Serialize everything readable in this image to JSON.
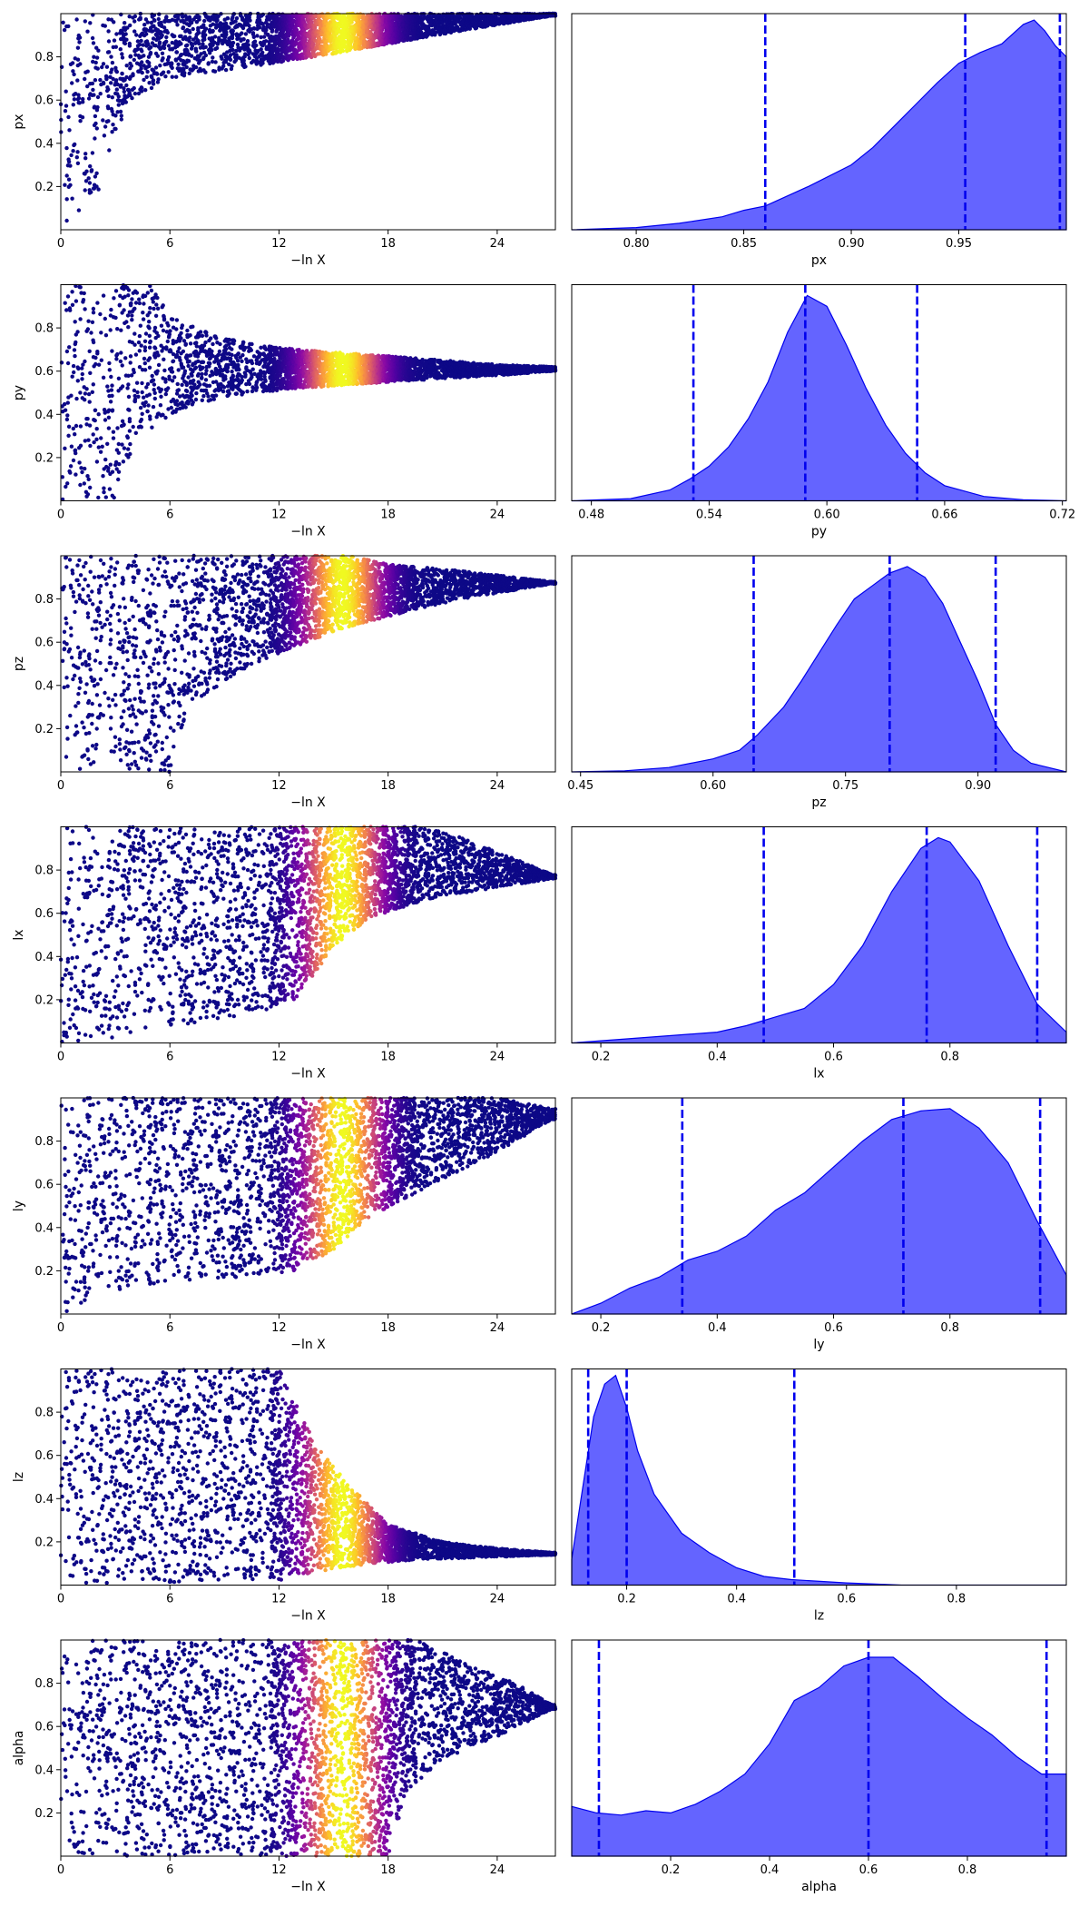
{
  "chart_data": [
    {
      "type": "scatter",
      "param": "px",
      "xlabel": "−ln X",
      "ylabel": "px",
      "xlim": [
        0,
        27.2
      ],
      "ylim": [
        0,
        1.0
      ],
      "xticks": [
        "0",
        "6",
        "12",
        "18",
        "24"
      ],
      "yticks": [
        "0.2",
        "0.4",
        "0.6",
        "0.8"
      ],
      "colormap": "plasma",
      "posterior_peak_lnX": 15.5,
      "shape": {
        "lower_boundary": [
          [
            0,
            0.0
          ],
          [
            2,
            0.15
          ],
          [
            3,
            0.45
          ],
          [
            4,
            0.6
          ],
          [
            6,
            0.7
          ],
          [
            10,
            0.75
          ],
          [
            14,
            0.8
          ],
          [
            18,
            0.86
          ],
          [
            22,
            0.92
          ],
          [
            27,
            0.99
          ]
        ],
        "upper_boundary": [
          [
            0,
            1.0
          ],
          [
            27,
            1.0
          ]
        ]
      }
    },
    {
      "type": "area",
      "param": "px",
      "xlabel": "px",
      "xlim": [
        0.77,
        1.0
      ],
      "xticks": [
        "0.80",
        "0.85",
        "0.90",
        "0.95"
      ],
      "fill_color": "#6464ff",
      "line_color": "#0000ee",
      "quantiles": [
        0.86,
        0.953,
        0.997
      ],
      "density": {
        "x": [
          0.77,
          0.8,
          0.82,
          0.84,
          0.85,
          0.86,
          0.88,
          0.9,
          0.91,
          0.92,
          0.93,
          0.94,
          0.95,
          0.96,
          0.97,
          0.98,
          0.985,
          0.99,
          0.995,
          1.0
        ],
        "y": [
          0.0,
          0.01,
          0.03,
          0.06,
          0.09,
          0.11,
          0.2,
          0.3,
          0.38,
          0.48,
          0.58,
          0.68,
          0.77,
          0.82,
          0.86,
          0.95,
          0.97,
          0.92,
          0.85,
          0.8
        ]
      }
    },
    {
      "type": "scatter",
      "param": "py",
      "xlabel": "−ln X",
      "ylabel": "py",
      "xlim": [
        0,
        27.2
      ],
      "ylim": [
        0,
        1.0
      ],
      "xticks": [
        "0",
        "6",
        "12",
        "18",
        "24"
      ],
      "yticks": [
        "0.2",
        "0.4",
        "0.6",
        "0.8"
      ],
      "colormap": "plasma",
      "posterior_peak_lnX": 15.5,
      "shape": {
        "lower_boundary": [
          [
            0,
            0.0
          ],
          [
            3,
            0.0
          ],
          [
            4,
            0.25
          ],
          [
            6,
            0.4
          ],
          [
            9,
            0.48
          ],
          [
            13,
            0.52
          ],
          [
            18,
            0.55
          ],
          [
            24,
            0.58
          ],
          [
            27,
            0.6
          ]
        ],
        "upper_boundary": [
          [
            0,
            1.0
          ],
          [
            5,
            1.0
          ],
          [
            6,
            0.85
          ],
          [
            9,
            0.75
          ],
          [
            13,
            0.7
          ],
          [
            18,
            0.67
          ],
          [
            24,
            0.63
          ],
          [
            27,
            0.62
          ]
        ]
      }
    },
    {
      "type": "area",
      "param": "py",
      "xlabel": "py",
      "xlim": [
        0.47,
        0.722
      ],
      "xticks": [
        "0.48",
        "0.54",
        "0.60",
        "0.66",
        "0.72"
      ],
      "fill_color": "#6464ff",
      "line_color": "#0000ee",
      "quantiles": [
        0.532,
        0.589,
        0.646
      ],
      "density": {
        "x": [
          0.47,
          0.5,
          0.52,
          0.53,
          0.54,
          0.55,
          0.56,
          0.57,
          0.58,
          0.59,
          0.6,
          0.61,
          0.62,
          0.63,
          0.64,
          0.65,
          0.66,
          0.68,
          0.7,
          0.722
        ],
        "y": [
          0.0,
          0.01,
          0.05,
          0.1,
          0.16,
          0.25,
          0.38,
          0.55,
          0.78,
          0.95,
          0.9,
          0.72,
          0.52,
          0.35,
          0.22,
          0.13,
          0.07,
          0.02,
          0.005,
          0.0
        ]
      }
    },
    {
      "type": "scatter",
      "param": "pz",
      "xlabel": "−ln X",
      "ylabel": "pz",
      "xlim": [
        0,
        27.2
      ],
      "ylim": [
        0,
        1.0
      ],
      "xticks": [
        "0",
        "6",
        "12",
        "18",
        "24"
      ],
      "yticks": [
        "0.2",
        "0.4",
        "0.6",
        "0.8"
      ],
      "colormap": "plasma",
      "posterior_peak_lnX": 15.5,
      "shape": {
        "lower_boundary": [
          [
            0,
            0.0
          ],
          [
            6,
            0.0
          ],
          [
            7,
            0.3
          ],
          [
            9,
            0.42
          ],
          [
            12,
            0.55
          ],
          [
            15,
            0.65
          ],
          [
            18,
            0.72
          ],
          [
            22,
            0.8
          ],
          [
            27,
            0.87
          ]
        ],
        "upper_boundary": [
          [
            0,
            1.0
          ],
          [
            16,
            1.0
          ],
          [
            18,
            0.96
          ],
          [
            22,
            0.93
          ],
          [
            27,
            0.88
          ]
        ]
      }
    },
    {
      "type": "area",
      "param": "pz",
      "xlabel": "pz",
      "xlim": [
        0.44,
        1.0
      ],
      "xticks": [
        "0.45",
        "0.60",
        "0.75",
        "0.90"
      ],
      "fill_color": "#6464ff",
      "line_color": "#0000ee",
      "quantiles": [
        0.646,
        0.8,
        0.92
      ],
      "density": {
        "x": [
          0.44,
          0.5,
          0.55,
          0.6,
          0.63,
          0.65,
          0.68,
          0.7,
          0.72,
          0.74,
          0.76,
          0.78,
          0.8,
          0.82,
          0.84,
          0.86,
          0.88,
          0.9,
          0.92,
          0.94,
          0.96,
          1.0
        ],
        "y": [
          0.0,
          0.005,
          0.02,
          0.06,
          0.1,
          0.17,
          0.3,
          0.42,
          0.55,
          0.68,
          0.8,
          0.86,
          0.92,
          0.95,
          0.9,
          0.78,
          0.6,
          0.42,
          0.22,
          0.1,
          0.04,
          0.0
        ]
      }
    },
    {
      "type": "scatter",
      "param": "lx",
      "xlabel": "−ln X",
      "ylabel": "lx",
      "xlim": [
        0,
        27.2
      ],
      "ylim": [
        0,
        1.0
      ],
      "xticks": [
        "0",
        "6",
        "12",
        "18",
        "24"
      ],
      "yticks": [
        "0.2",
        "0.4",
        "0.6",
        "0.8"
      ],
      "colormap": "plasma",
      "posterior_peak_lnX": 15.5,
      "shape": {
        "lower_boundary": [
          [
            0,
            0.0
          ],
          [
            3,
            0.02
          ],
          [
            6,
            0.08
          ],
          [
            10,
            0.12
          ],
          [
            13,
            0.2
          ],
          [
            15,
            0.45
          ],
          [
            17,
            0.58
          ],
          [
            20,
            0.66
          ],
          [
            24,
            0.72
          ],
          [
            27,
            0.76
          ]
        ],
        "upper_boundary": [
          [
            0,
            1.0
          ],
          [
            20,
            1.0
          ],
          [
            22,
            0.95
          ],
          [
            25,
            0.85
          ],
          [
            27,
            0.78
          ]
        ]
      }
    },
    {
      "type": "area",
      "param": "lx",
      "xlabel": "lx",
      "xlim": [
        0.15,
        1.0
      ],
      "xticks": [
        "0.2",
        "0.4",
        "0.6",
        "0.8"
      ],
      "fill_color": "#6464ff",
      "line_color": "#0000ee",
      "quantiles": [
        0.48,
        0.76,
        0.95
      ],
      "density": {
        "x": [
          0.15,
          0.2,
          0.3,
          0.4,
          0.45,
          0.5,
          0.55,
          0.6,
          0.65,
          0.7,
          0.75,
          0.78,
          0.8,
          0.85,
          0.9,
          0.95,
          1.0
        ],
        "y": [
          0.0,
          0.01,
          0.03,
          0.05,
          0.08,
          0.12,
          0.16,
          0.27,
          0.45,
          0.7,
          0.9,
          0.95,
          0.93,
          0.75,
          0.45,
          0.18,
          0.05
        ]
      }
    },
    {
      "type": "scatter",
      "param": "ly",
      "xlabel": "−ln X",
      "ylabel": "ly",
      "xlim": [
        0,
        27.2
      ],
      "ylim": [
        0,
        1.0
      ],
      "xticks": [
        "0",
        "6",
        "12",
        "18",
        "24"
      ],
      "yticks": [
        "0.2",
        "0.4",
        "0.6",
        "0.8"
      ],
      "colormap": "plasma",
      "posterior_peak_lnX": 15.5,
      "shape": {
        "lower_boundary": [
          [
            0,
            0.0
          ],
          [
            3,
            0.1
          ],
          [
            6,
            0.15
          ],
          [
            10,
            0.17
          ],
          [
            13,
            0.2
          ],
          [
            15,
            0.3
          ],
          [
            17,
            0.45
          ],
          [
            20,
            0.58
          ],
          [
            24,
            0.75
          ],
          [
            27,
            0.9
          ]
        ],
        "upper_boundary": [
          [
            0,
            1.0
          ],
          [
            24,
            1.0
          ],
          [
            27,
            0.95
          ]
        ]
      }
    },
    {
      "type": "area",
      "param": "ly",
      "xlabel": "ly",
      "xlim": [
        0.15,
        1.0
      ],
      "xticks": [
        "0.2",
        "0.4",
        "0.6",
        "0.8"
      ],
      "fill_color": "#6464ff",
      "line_color": "#0000ee",
      "quantiles": [
        0.34,
        0.72,
        0.955
      ],
      "density": {
        "x": [
          0.15,
          0.2,
          0.25,
          0.3,
          0.35,
          0.4,
          0.45,
          0.5,
          0.55,
          0.6,
          0.65,
          0.7,
          0.75,
          0.8,
          0.85,
          0.9,
          0.95,
          1.0
        ],
        "y": [
          0.0,
          0.05,
          0.12,
          0.17,
          0.25,
          0.29,
          0.36,
          0.48,
          0.56,
          0.68,
          0.8,
          0.9,
          0.94,
          0.95,
          0.86,
          0.7,
          0.43,
          0.18
        ]
      }
    },
    {
      "type": "scatter",
      "param": "lz",
      "xlabel": "−ln X",
      "ylabel": "lz",
      "xlim": [
        0,
        27.2
      ],
      "ylim": [
        0,
        1.0
      ],
      "xticks": [
        "0",
        "6",
        "12",
        "18",
        "24"
      ],
      "yticks": [
        "0.2",
        "0.4",
        "0.6",
        "0.8"
      ],
      "colormap": "plasma",
      "posterior_peak_lnX": 15.5,
      "shape": {
        "lower_boundary": [
          [
            0,
            0.0
          ],
          [
            12,
            0.02
          ],
          [
            14,
            0.06
          ],
          [
            17,
            0.1
          ],
          [
            20,
            0.12
          ],
          [
            24,
            0.13
          ],
          [
            27,
            0.14
          ]
        ],
        "upper_boundary": [
          [
            0,
            1.0
          ],
          [
            12,
            1.0
          ],
          [
            14,
            0.65
          ],
          [
            16,
            0.45
          ],
          [
            18,
            0.28
          ],
          [
            21,
            0.2
          ],
          [
            24,
            0.17
          ],
          [
            27,
            0.15
          ]
        ]
      }
    },
    {
      "type": "area",
      "param": "lz",
      "xlabel": "lz",
      "xlim": [
        0.1,
        1.0
      ],
      "xticks": [
        "0.2",
        "0.4",
        "0.6",
        "0.8"
      ],
      "fill_color": "#6464ff",
      "line_color": "#0000ee",
      "quantiles": [
        0.13,
        0.2,
        0.505
      ],
      "density": {
        "x": [
          0.1,
          0.12,
          0.14,
          0.16,
          0.18,
          0.2,
          0.22,
          0.25,
          0.3,
          0.35,
          0.4,
          0.45,
          0.5,
          0.6,
          0.7,
          1.0
        ],
        "y": [
          0.12,
          0.45,
          0.78,
          0.93,
          0.97,
          0.82,
          0.62,
          0.42,
          0.24,
          0.15,
          0.08,
          0.04,
          0.025,
          0.01,
          0.0,
          0.0
        ]
      }
    },
    {
      "type": "scatter",
      "param": "alpha",
      "xlabel": "−ln X",
      "ylabel": "alpha",
      "xlim": [
        0,
        27.2
      ],
      "ylim": [
        0,
        1.0
      ],
      "xticks": [
        "0",
        "6",
        "12",
        "18",
        "24"
      ],
      "yticks": [
        "0.2",
        "0.4",
        "0.6",
        "0.8"
      ],
      "colormap": "plasma",
      "posterior_peak_lnX": 15.5,
      "shape": {
        "lower_boundary": [
          [
            0,
            0.0
          ],
          [
            18,
            0.0
          ],
          [
            19,
            0.3
          ],
          [
            21,
            0.45
          ],
          [
            24,
            0.55
          ],
          [
            27,
            0.68
          ]
        ],
        "upper_boundary": [
          [
            0,
            1.0
          ],
          [
            20,
            1.0
          ],
          [
            22,
            0.9
          ],
          [
            25,
            0.8
          ],
          [
            27,
            0.7
          ]
        ]
      }
    },
    {
      "type": "area",
      "param": "alpha",
      "xlabel": "alpha",
      "xlim": [
        0.0,
        1.0
      ],
      "xticks": [
        "0.2",
        "0.4",
        "0.6",
        "0.8"
      ],
      "fill_color": "#6464ff",
      "line_color": "#0000ee",
      "quantiles": [
        0.055,
        0.6,
        0.96
      ],
      "density": {
        "x": [
          0.0,
          0.05,
          0.1,
          0.15,
          0.2,
          0.25,
          0.3,
          0.35,
          0.4,
          0.45,
          0.5,
          0.55,
          0.6,
          0.65,
          0.7,
          0.75,
          0.8,
          0.85,
          0.9,
          0.95,
          1.0
        ],
        "y": [
          0.23,
          0.2,
          0.19,
          0.21,
          0.2,
          0.24,
          0.3,
          0.38,
          0.52,
          0.72,
          0.78,
          0.88,
          0.92,
          0.92,
          0.83,
          0.73,
          0.64,
          0.56,
          0.46,
          0.38,
          0.38
        ]
      }
    }
  ]
}
